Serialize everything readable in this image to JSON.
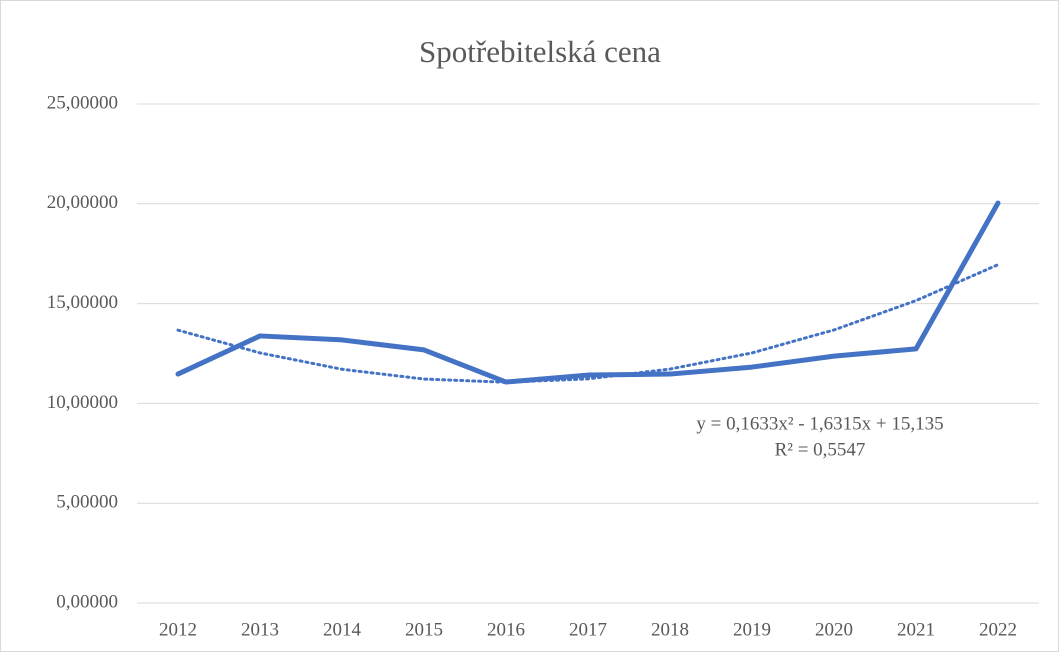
{
  "chart_data": {
    "type": "line",
    "title": "Spotřebitelská cena",
    "categories": [
      "2012",
      "2013",
      "2014",
      "2015",
      "2016",
      "2017",
      "2018",
      "2019",
      "2020",
      "2021",
      "2022"
    ],
    "series": [
      {
        "color": "#4472c4",
        "style": "solid",
        "values": [
          11.47,
          13.38,
          13.18,
          12.68,
          11.07,
          11.42,
          11.47,
          11.82,
          12.37,
          12.73,
          20.04
        ]
      },
      {
        "color": "#4472c4",
        "style": "dotted",
        "values": [
          13.67,
          12.53,
          11.71,
          11.22,
          11.06,
          11.23,
          11.72,
          12.53,
          13.68,
          15.15,
          16.95
        ]
      }
    ],
    "annotations": [
      "y = 0,1633x² - 1,6315x + 15,135",
      "R² = 0,5547"
    ],
    "ylim": [
      0,
      25
    ],
    "yticks": [
      {
        "value": 0,
        "label": "0,00000"
      },
      {
        "value": 5,
        "label": "5,00000"
      },
      {
        "value": 10,
        "label": "10,00000"
      },
      {
        "value": 15,
        "label": "15,00000"
      },
      {
        "value": 20,
        "label": "20,00000"
      },
      {
        "value": 25,
        "label": "25,00000"
      }
    ],
    "grid": true
  }
}
